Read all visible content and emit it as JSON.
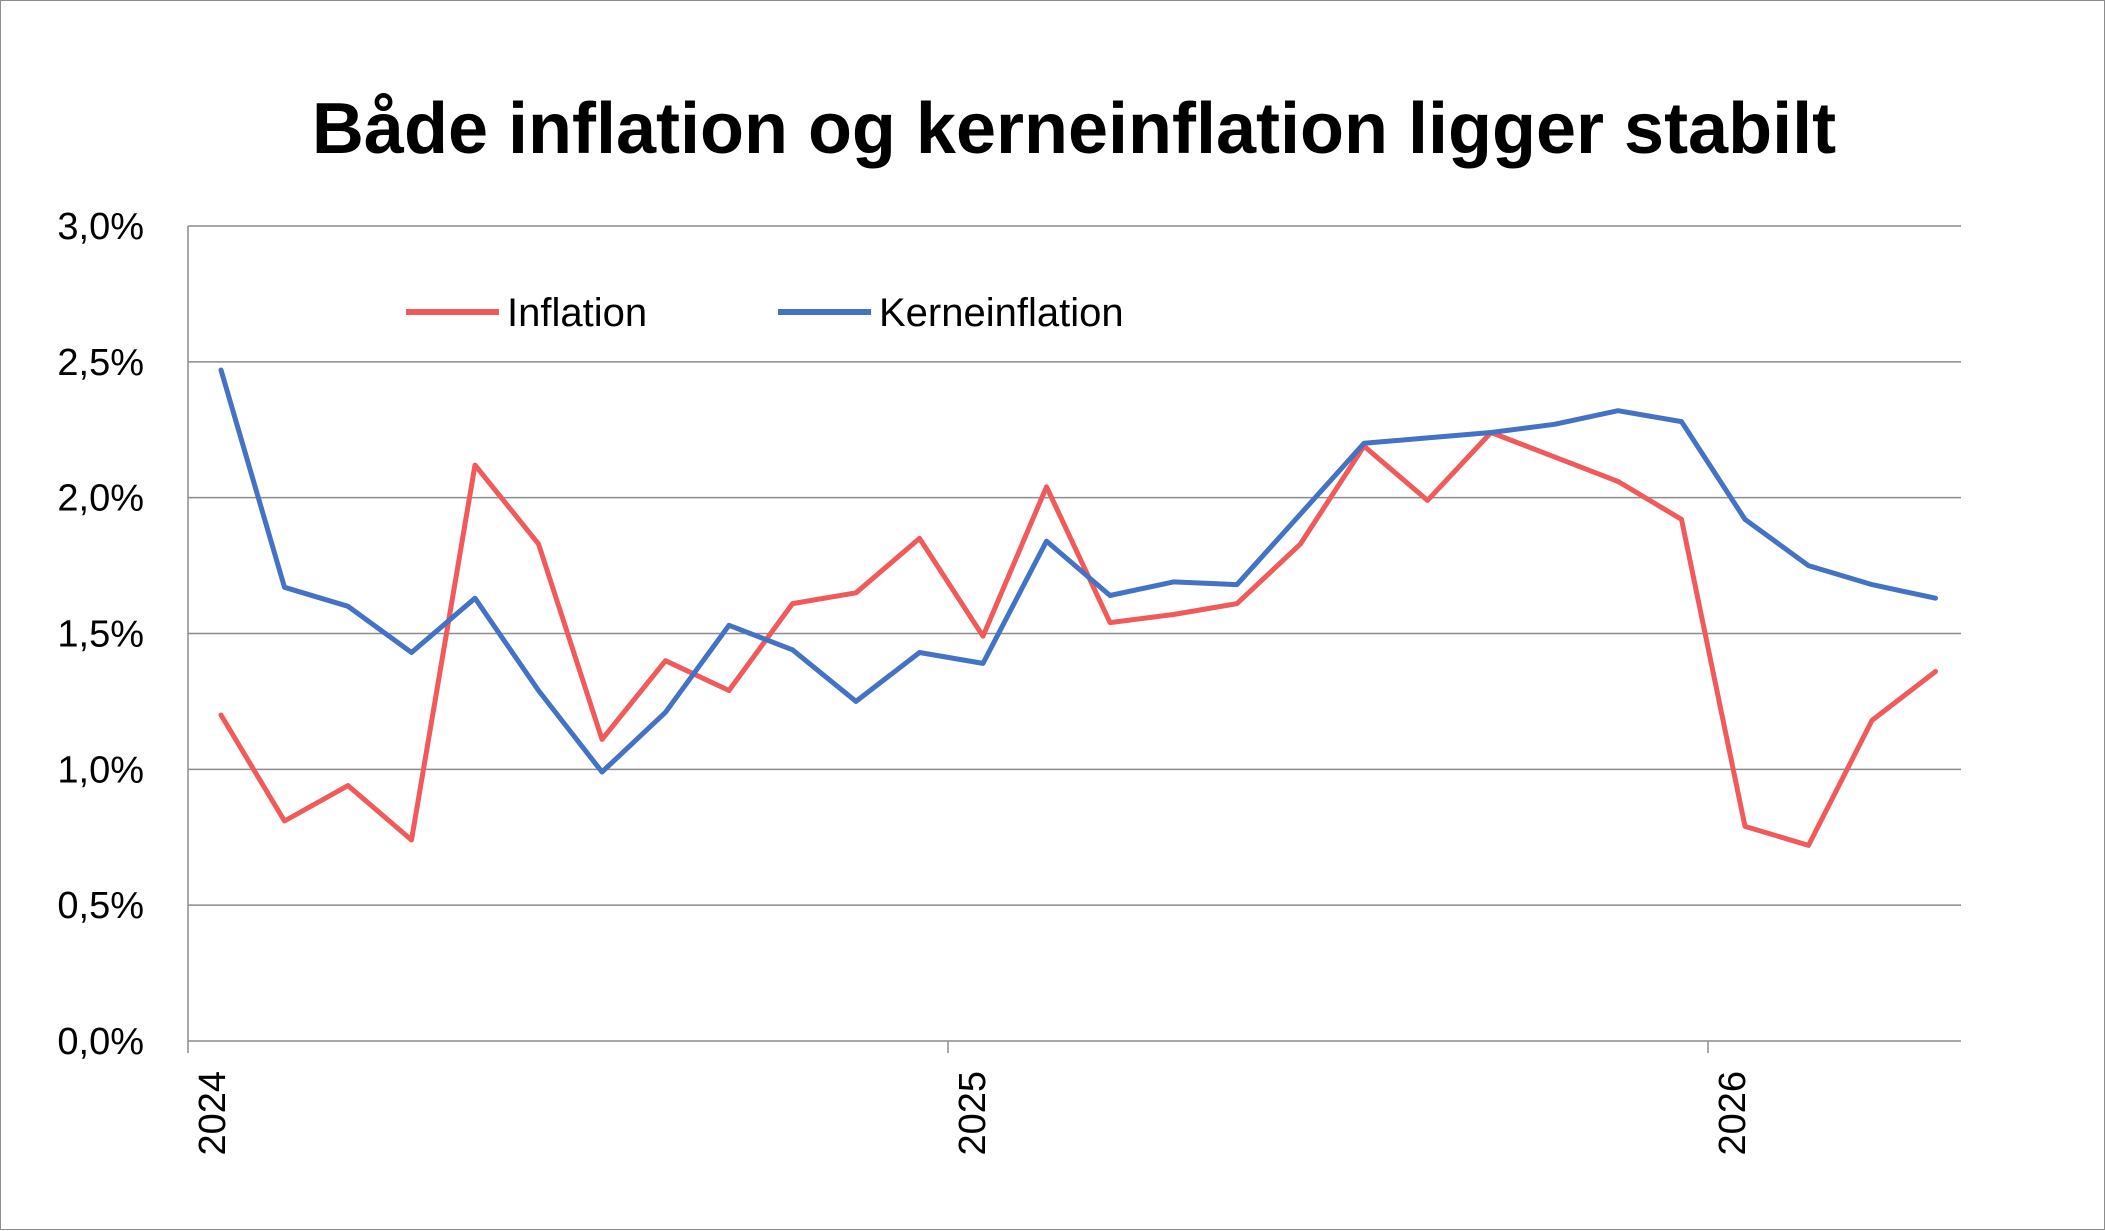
{
  "chart_data": {
    "type": "line",
    "title": "Både inflation og kerneinflation ligger stabilt",
    "xlabel": "",
    "ylabel": "",
    "ylim": [
      0,
      0.03
    ],
    "y_ticks": [
      "0,0%",
      "0,5%",
      "1,0%",
      "1,5%",
      "2,0%",
      "2,5%",
      "3,0%"
    ],
    "x_tick_labels": [
      "2024",
      "2025",
      "2026"
    ],
    "grid": true,
    "legend_position": "top-left",
    "x": [
      "2024-01",
      "2024-02",
      "2024-03",
      "2024-04",
      "2024-05",
      "2024-06",
      "2024-07",
      "2024-08",
      "2024-09",
      "2024-10",
      "2024-11",
      "2024-12",
      "2025-01",
      "2025-02",
      "2025-03",
      "2025-04",
      "2025-05",
      "2025-06",
      "2025-07",
      "2025-08",
      "2025-09",
      "2025-10",
      "2025-11",
      "2025-12",
      "2026-01",
      "2026-02",
      "2026-03",
      "2026-04"
    ],
    "series": [
      {
        "name": "Inflation",
        "color": "#f05a5a",
        "values": [
          0.012,
          0.0081,
          0.0094,
          0.0074,
          0.0212,
          0.0183,
          0.0111,
          0.014,
          0.0129,
          0.0161,
          0.0165,
          0.0185,
          0.0149,
          0.0204,
          0.0154,
          0.0157,
          0.0161,
          0.0183,
          0.0219,
          0.0199,
          0.0224,
          0.0215,
          0.0206,
          0.0192,
          0.0079,
          0.0072,
          0.0118,
          0.0136
        ]
      },
      {
        "name": "Kerneinflation",
        "color": "#4472c4",
        "values": [
          0.0247,
          0.0167,
          0.016,
          0.0143,
          0.0163,
          0.0129,
          0.0099,
          0.0121,
          0.0153,
          0.0144,
          0.0125,
          0.0143,
          0.0139,
          0.0184,
          0.0164,
          0.0169,
          0.0168,
          0.0194,
          0.022,
          0.0222,
          0.0224,
          0.0227,
          0.0232,
          0.0228,
          0.0192,
          0.0175,
          0.0168,
          0.0163
        ]
      }
    ]
  }
}
